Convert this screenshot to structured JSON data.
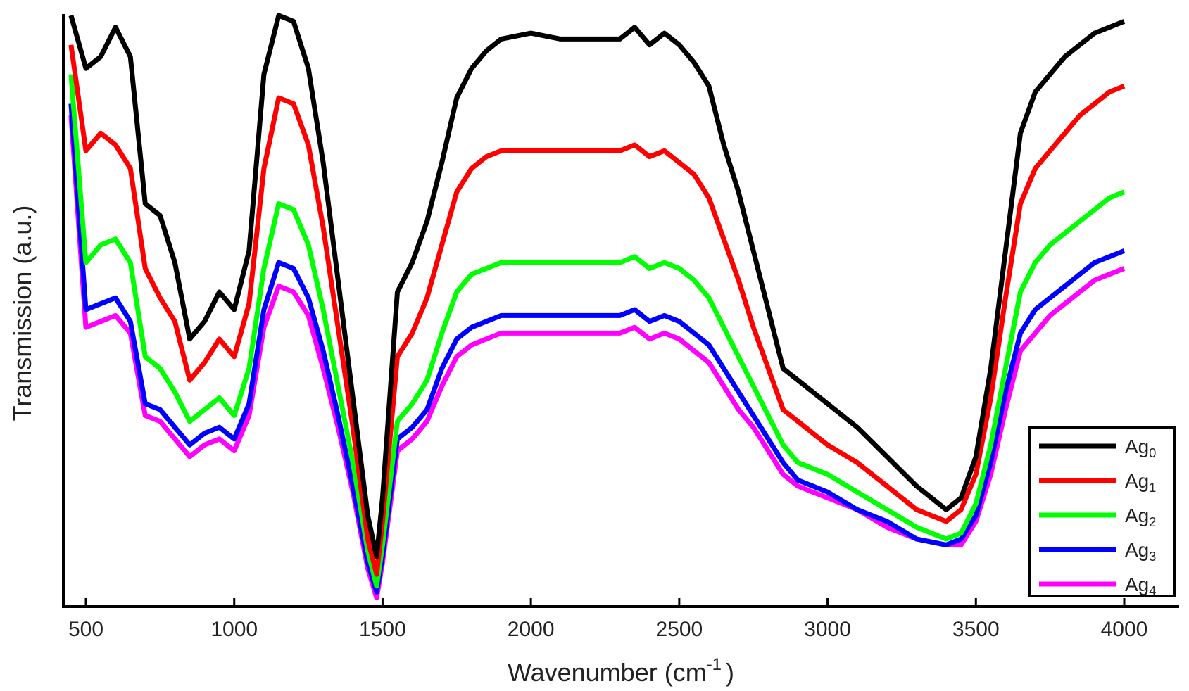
{
  "chart_data": {
    "type": "line",
    "title": "",
    "xlabel": "Wavenumber (cm",
    "xlabel_sup": "-1",
    "xlabel_close": ")",
    "ylabel": "Transmission (a.u.)",
    "xlim": [
      420,
      4200
    ],
    "ylim": [
      0,
      100
    ],
    "x_ticks": [
      500,
      1000,
      1500,
      2000,
      2500,
      3000,
      3500,
      4000
    ],
    "x_tick_labels": [
      "500",
      "1000",
      "1500",
      "2000",
      "2500",
      "3000",
      "3500",
      "4000"
    ],
    "grid": false,
    "legend_position": "bottom-right",
    "x": [
      450,
      500,
      550,
      600,
      650,
      700,
      750,
      800,
      850,
      900,
      950,
      1000,
      1050,
      1100,
      1150,
      1200,
      1250,
      1300,
      1350,
      1400,
      1450,
      1480,
      1500,
      1550,
      1600,
      1650,
      1700,
      1750,
      1800,
      1850,
      1900,
      2000,
      2100,
      2200,
      2300,
      2350,
      2400,
      2450,
      2500,
      2550,
      2600,
      2650,
      2700,
      2750,
      2800,
      2850,
      2900,
      2950,
      3000,
      3100,
      3200,
      3300,
      3400,
      3450,
      3500,
      3550,
      3600,
      3650,
      3700,
      3750,
      3800,
      3850,
      3900,
      3950,
      4000
    ],
    "series": [
      {
        "name": "Ag",
        "name_sub": "0",
        "color": "#000000",
        "values": [
          100,
          91,
          93,
          98,
          93,
          68,
          66,
          58,
          45,
          48,
          53,
          50,
          60,
          90,
          100,
          99,
          91,
          75,
          55,
          35,
          15,
          8,
          18,
          53,
          58,
          65,
          75,
          86,
          91,
          94,
          96,
          97,
          96,
          96,
          96,
          98,
          95,
          97,
          95,
          92,
          88,
          78,
          70,
          60,
          50,
          40,
          38,
          36,
          34,
          30,
          25,
          20,
          16,
          18,
          25,
          40,
          60,
          80,
          87,
          90,
          93,
          95,
          97,
          98,
          99
        ]
      },
      {
        "name": "Ag",
        "name_sub": "1",
        "color": "#ff0000",
        "values": [
          95,
          77,
          80,
          78,
          74,
          57,
          52,
          48,
          38,
          41,
          45,
          42,
          51,
          74,
          86,
          85,
          78,
          64,
          47,
          30,
          11,
          5,
          14,
          42,
          46,
          52,
          61,
          70,
          74,
          76,
          77,
          77,
          77,
          77,
          77,
          78,
          76,
          77,
          75,
          73,
          69,
          62,
          55,
          47,
          40,
          33,
          31,
          29,
          27,
          24,
          20,
          16,
          14,
          16,
          22,
          35,
          52,
          68,
          74,
          77,
          80,
          83,
          85,
          87,
          88
        ]
      },
      {
        "name": "Ag",
        "name_sub": "2",
        "color": "#00ff00",
        "values": [
          90,
          58,
          61,
          62,
          58,
          42,
          40,
          36,
          31,
          33,
          35,
          32,
          40,
          57,
          68,
          67,
          61,
          50,
          37,
          24,
          9,
          3,
          10,
          31,
          34,
          38,
          46,
          53,
          56,
          57,
          58,
          58,
          58,
          58,
          58,
          59,
          57,
          58,
          57,
          55,
          52,
          47,
          42,
          37,
          32,
          27,
          24,
          23,
          22,
          19,
          16,
          13,
          11,
          12,
          17,
          27,
          40,
          53,
          58,
          61,
          63,
          65,
          67,
          69,
          70
        ]
      },
      {
        "name": "Ag",
        "name_sub": "3",
        "color": "#0000ff",
        "values": [
          85,
          50,
          51,
          52,
          48,
          34,
          33,
          30,
          27,
          29,
          30,
          28,
          34,
          50,
          58,
          57,
          52,
          43,
          32,
          20,
          7,
          2,
          8,
          28,
          30,
          33,
          40,
          45,
          47,
          48,
          49,
          49,
          49,
          49,
          49,
          50,
          48,
          49,
          48,
          46,
          44,
          40,
          36,
          32,
          28,
          24,
          21,
          20,
          19,
          16,
          14,
          11,
          10,
          11,
          15,
          24,
          36,
          46,
          50,
          52,
          54,
          56,
          58,
          59,
          60
        ]
      },
      {
        "name": "Ag",
        "name_sub": "4",
        "color": "#ff00ff",
        "values": [
          83,
          47,
          48,
          49,
          46,
          32,
          31,
          28,
          25,
          27,
          28,
          26,
          32,
          47,
          54,
          53,
          49,
          40,
          30,
          19,
          6,
          1,
          7,
          26,
          28,
          31,
          37,
          42,
          44,
          45,
          46,
          46,
          46,
          46,
          46,
          47,
          45,
          46,
          45,
          43,
          41,
          37,
          33,
          30,
          26,
          22,
          20,
          19,
          18,
          16,
          13,
          11,
          10,
          10,
          14,
          22,
          33,
          43,
          46,
          49,
          51,
          53,
          55,
          56,
          57
        ]
      }
    ]
  }
}
